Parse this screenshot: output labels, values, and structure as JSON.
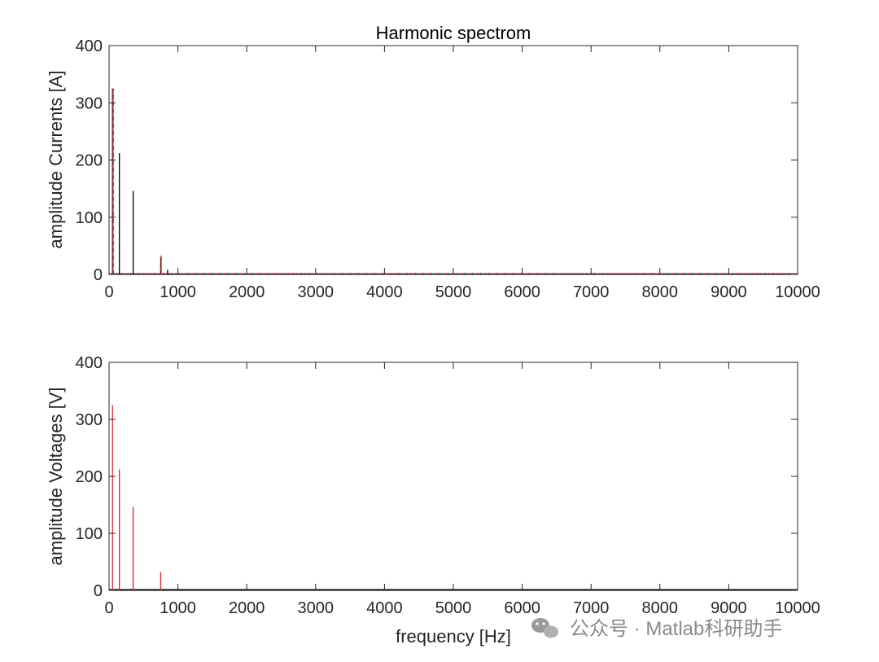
{
  "watermark": {
    "text": "公众号 · Matlab科研助手",
    "icon": "wechat-icon"
  },
  "chart_data": [
    {
      "type": "bar",
      "title": "Harmonic spectrom",
      "xlabel": "",
      "ylabel": "amplitude Currents [A]",
      "xlim": [
        0,
        10000
      ],
      "ylim": [
        0,
        400
      ],
      "xticks": [
        0,
        1000,
        2000,
        3000,
        4000,
        5000,
        6000,
        7000,
        8000,
        9000,
        10000
      ],
      "yticks": [
        0,
        100,
        200,
        300,
        400
      ],
      "grid": false,
      "series": [
        {
          "color": "#000000",
          "dash": "solid",
          "x": [
            50,
            150,
            350,
            750,
            850
          ],
          "y": [
            325,
            212,
            146,
            30,
            8
          ]
        },
        {
          "color": "#d62728",
          "dash": "solid",
          "x": [
            50,
            750
          ],
          "y": [
            325,
            33
          ]
        },
        {
          "color": "#1f77b4",
          "dash": "dashed",
          "x": [
            50
          ],
          "y": [
            325
          ]
        }
      ]
    },
    {
      "type": "bar",
      "title": "",
      "xlabel": "frequency [Hz]",
      "ylabel": "amplitude Voltages [V]",
      "xlim": [
        0,
        10000
      ],
      "ylim": [
        0,
        400
      ],
      "xticks": [
        0,
        1000,
        2000,
        3000,
        4000,
        5000,
        6000,
        7000,
        8000,
        9000,
        10000
      ],
      "yticks": [
        0,
        100,
        200,
        300,
        400
      ],
      "grid": false,
      "series": [
        {
          "color": "#d62728",
          "dash": "solid",
          "x": [
            50,
            150,
            350,
            750
          ],
          "y": [
            325,
            212,
            146,
            32
          ]
        }
      ]
    }
  ]
}
